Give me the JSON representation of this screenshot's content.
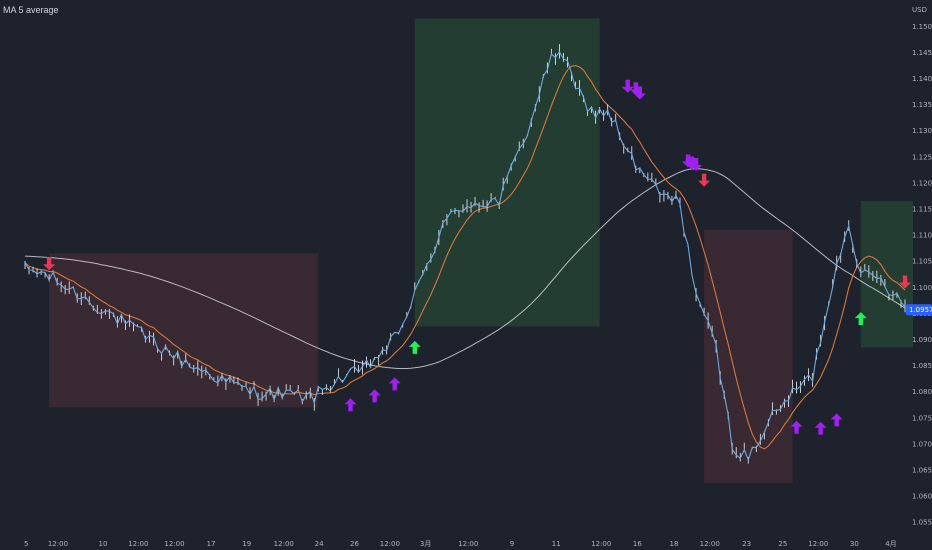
{
  "chart_data": {
    "type": "line",
    "title": "MA 5 average",
    "unit": "USD",
    "y_ticks": [
      "1.15000",
      "1.14500",
      "1.14000",
      "1.13500",
      "1.13000",
      "1.12500",
      "1.12000",
      "1.11500",
      "1.11000",
      "1.10500",
      "1.10000",
      "1.09500",
      "1.09000",
      "1.08500",
      "1.08000",
      "1.07500",
      "1.07000",
      "1.06500",
      "1.06000",
      "1.05500"
    ],
    "ylim": [
      1.0535,
      1.1535
    ],
    "x_ticks": [
      "5",
      "12:00",
      "10",
      "12:00",
      "12:00",
      "17",
      "19",
      "12:00",
      "24",
      "26",
      "12:00",
      "3月",
      "12:00",
      "9",
      "11",
      "12:00",
      "16",
      "18",
      "12:00",
      "23",
      "25",
      "12:00",
      "30",
      "4月"
    ],
    "x_tick_index": [
      0.3,
      8.2,
      19.4,
      28.2,
      37.2,
      46.3,
      55.2,
      64.4,
      73.2,
      82.0,
      90.8,
      99.7,
      110.3,
      121.2,
      132.2,
      143.4,
      152.4,
      161.5,
      170.4,
      179.6,
      188.6,
      197.4,
      206.4,
      215.5
    ],
    "n_bars": 220,
    "price_anchors": [
      [
        0,
        1.1035
      ],
      [
        5,
        1.1025
      ],
      [
        20,
        1.0955
      ],
      [
        40,
        1.0855
      ],
      [
        56,
        1.08
      ],
      [
        72,
        1.079
      ],
      [
        77,
        1.082
      ],
      [
        84,
        1.084
      ],
      [
        92,
        1.09
      ],
      [
        98,
        1.1
      ],
      [
        104,
        1.112
      ],
      [
        110,
        1.116
      ],
      [
        118,
        1.1165
      ],
      [
        125,
        1.13
      ],
      [
        130,
        1.142
      ],
      [
        133,
        1.146
      ],
      [
        137,
        1.138
      ],
      [
        142,
        1.133
      ],
      [
        145,
        1.134
      ],
      [
        152,
        1.123
      ],
      [
        158,
        1.118
      ],
      [
        163,
        1.116
      ],
      [
        167,
        1.099
      ],
      [
        172,
        1.088
      ],
      [
        176,
        1.07
      ],
      [
        180,
        1.067
      ],
      [
        184,
        1.073
      ],
      [
        190,
        1.079
      ],
      [
        196,
        1.083
      ],
      [
        201,
        1.101
      ],
      [
        205,
        1.113
      ],
      [
        208,
        1.102
      ],
      [
        212,
        1.102
      ],
      [
        216,
        1.099
      ],
      [
        219,
        1.0975
      ]
    ],
    "last_price": "1.09570",
    "series": [
      {
        "name": "",
        "role": "price",
        "color": "#5b9bd5"
      },
      {
        "name": "",
        "role": "ma-fast",
        "color": "#d4783b"
      },
      {
        "name": "",
        "role": "ma-slow",
        "color": "#d1d4dc"
      }
    ],
    "zones": [
      {
        "kind": "bearish",
        "x_start": 6,
        "x_end": 73,
        "y_top": 1.1065,
        "y_bottom": 1.077,
        "color": "#3b2a33"
      },
      {
        "kind": "bullish",
        "x_start": 97,
        "x_end": 143,
        "y_top": 1.1515,
        "y_bottom": 1.0925,
        "color": "#253f34"
      },
      {
        "kind": "bearish",
        "x_start": 169,
        "x_end": 191,
        "y_top": 1.111,
        "y_bottom": 1.0625,
        "color": "#3b2a33"
      },
      {
        "kind": "bullish",
        "x_start": 208,
        "x_end": 221,
        "y_top": 1.1165,
        "y_bottom": 1.0885,
        "color": "#253f34"
      }
    ],
    "signals": [
      {
        "bar": 6,
        "price": 1.1025,
        "dir": "down",
        "color": "#e53955"
      },
      {
        "bar": 81,
        "price": 1.0795,
        "dir": "up",
        "color": "#a020f0"
      },
      {
        "bar": 87,
        "price": 1.0812,
        "dir": "up",
        "color": "#a020f0"
      },
      {
        "bar": 92,
        "price": 1.0835,
        "dir": "up",
        "color": "#a020f0"
      },
      {
        "bar": 97,
        "price": 1.0905,
        "dir": "up",
        "color": "#22ee55"
      },
      {
        "bar": 150,
        "price": 1.1365,
        "dir": "down",
        "color": "#a020f0"
      },
      {
        "bar": 152,
        "price": 1.136,
        "dir": "down",
        "color": "#a020f0"
      },
      {
        "bar": 153,
        "price": 1.1352,
        "dir": "down",
        "color": "#a020f0"
      },
      {
        "bar": 165,
        "price": 1.1222,
        "dir": "down",
        "color": "#a020f0"
      },
      {
        "bar": 166,
        "price": 1.1218,
        "dir": "down",
        "color": "#a020f0"
      },
      {
        "bar": 167,
        "price": 1.1215,
        "dir": "down",
        "color": "#a020f0"
      },
      {
        "bar": 169,
        "price": 1.1185,
        "dir": "down",
        "color": "#e53955"
      },
      {
        "bar": 192,
        "price": 1.0752,
        "dir": "up",
        "color": "#a020f0"
      },
      {
        "bar": 198,
        "price": 1.075,
        "dir": "up",
        "color": "#a020f0"
      },
      {
        "bar": 202,
        "price": 1.0766,
        "dir": "up",
        "color": "#a020f0"
      },
      {
        "bar": 208,
        "price": 1.096,
        "dir": "up",
        "color": "#22ee55"
      },
      {
        "bar": 219,
        "price": 1.099,
        "dir": "down",
        "color": "#e53955"
      }
    ],
    "grid": true,
    "legend": "none"
  },
  "colors": {
    "background": "#1e222d",
    "axis_text": "#b2b5be",
    "price_tag_bg": "#2962ff",
    "ma_fast": "#d4783b",
    "ma_slow": "#d1d4dc",
    "price": "#6fa8dc"
  }
}
